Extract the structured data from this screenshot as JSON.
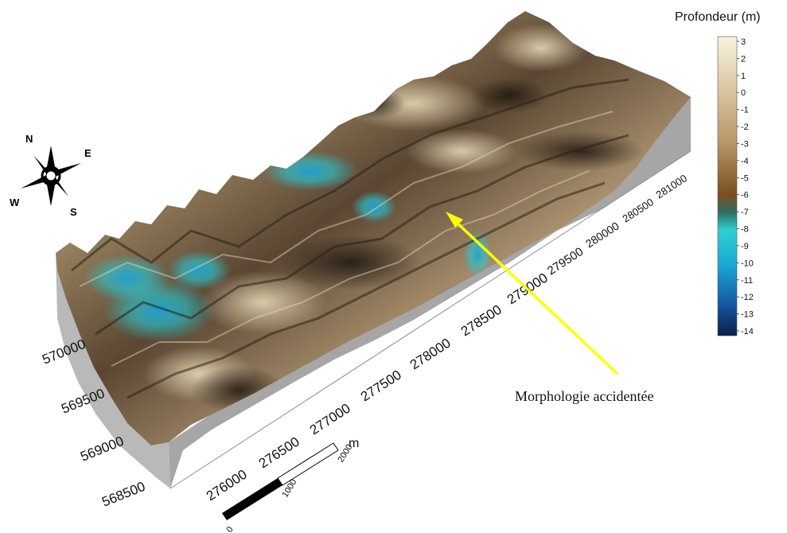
{
  "map": {
    "colorbar": {
      "title": "Profondeur (m)",
      "ticks": [
        "3",
        "2",
        "1",
        "0",
        "-1",
        "-2",
        "-3",
        "-4",
        "-5",
        "-6",
        "-7",
        "-8",
        "-9",
        "-10",
        "-11",
        "-12",
        "-13",
        "-14"
      ],
      "range": [
        -14,
        3
      ],
      "stops": [
        {
          "value": 3,
          "color": "#f7f2df"
        },
        {
          "value": 0,
          "color": "#d9c7a2"
        },
        {
          "value": -3,
          "color": "#b9966a"
        },
        {
          "value": -6,
          "color": "#7a4f1f"
        },
        {
          "value": -7,
          "color": "#2e6e63"
        },
        {
          "value": -8,
          "color": "#2fd0d0"
        },
        {
          "value": -10,
          "color": "#1aa7d4"
        },
        {
          "value": -12,
          "color": "#1560a8"
        },
        {
          "value": -14,
          "color": "#0b1f4a"
        }
      ]
    },
    "x_axis_labels": [
      "276000",
      "276500",
      "277000",
      "277500",
      "278000",
      "278500",
      "279000",
      "279500",
      "280000",
      "280500",
      "281000"
    ],
    "y_axis_labels": [
      "568500",
      "569000",
      "569500",
      "570000"
    ],
    "compass": {
      "n": "N",
      "e": "E",
      "s": "S",
      "w": "W"
    },
    "scale_bar": {
      "start": "0",
      "mid": "1000",
      "end": "2000",
      "unit": "m"
    },
    "annotation": "Morphologie accidentée",
    "colors": {
      "side_wall": "#a6a6a6",
      "arrow": "#ffff00",
      "terrain_light": "#c8b089",
      "terrain_dark": "#2a2118"
    }
  }
}
